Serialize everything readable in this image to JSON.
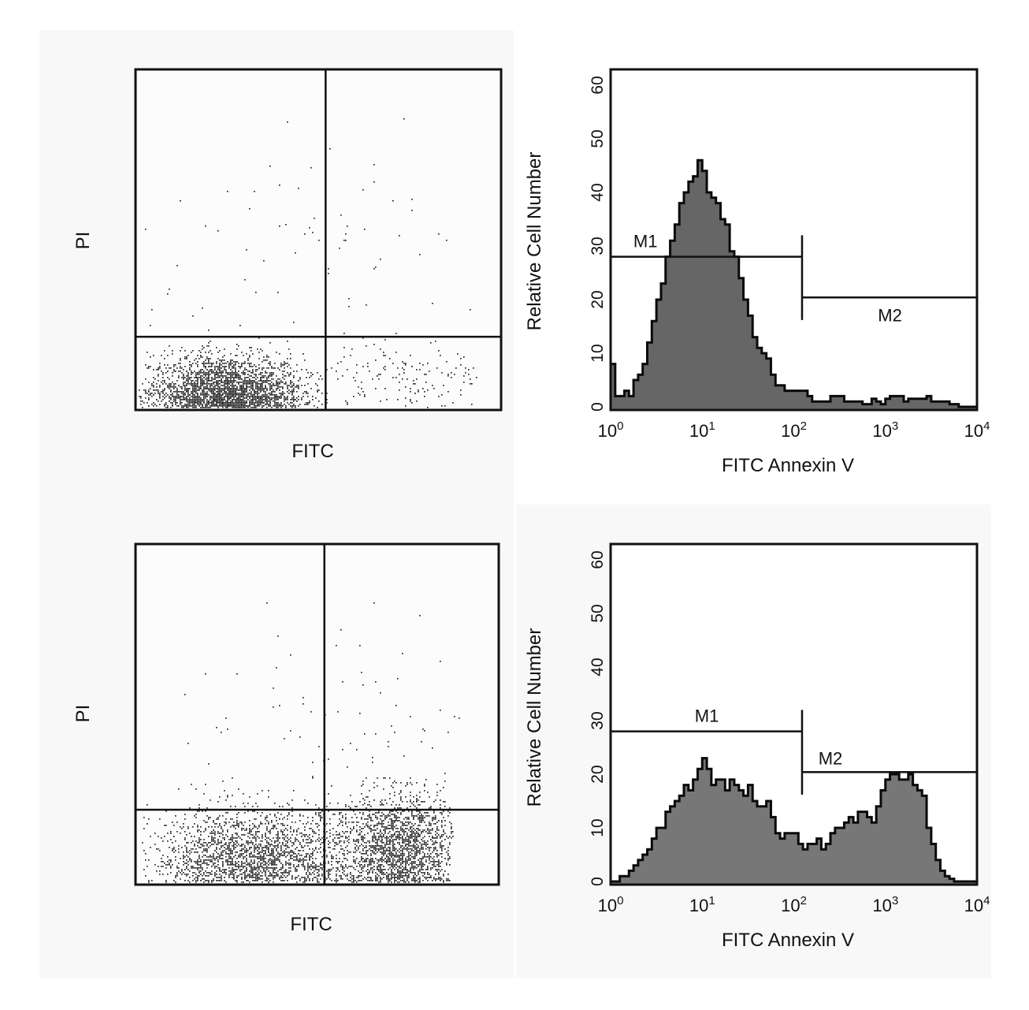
{
  "chart_data": [
    {
      "type": "scatter",
      "panel": "top-left",
      "xlabel": "FITC",
      "ylabel": "PI",
      "x_scale": "log",
      "xlim_decades": [
        0,
        4
      ],
      "y_scale": "log",
      "ylim_decades": [
        0,
        4
      ],
      "quadrant_x_decade": 2.08,
      "quadrant_y_decade": 0.86,
      "clusters": [
        {
          "n": 2600,
          "cx": 0.95,
          "sx": 0.42,
          "cy": 0.18,
          "sy": 0.22,
          "xmin": 0.0,
          "xmax": 2.08
        },
        {
          "n": 160,
          "cx": 2.9,
          "sx": 0.45,
          "cy": 0.35,
          "sy": 0.25,
          "xmin": 2.08,
          "xmax": 3.8
        },
        {
          "n": 70,
          "cx": 2.0,
          "sx": 1.1,
          "cy": 1.9,
          "sy": 0.55,
          "xmin": 0.0,
          "xmax": 3.9
        }
      ]
    },
    {
      "type": "histogram",
      "panel": "top-right",
      "xlabel": "FITC Annexin V",
      "ylabel": "Relative Cell Number",
      "x_scale": "log",
      "xlim": [
        1,
        10000
      ],
      "x_ticks": [
        {
          "base": "10",
          "exp": "0"
        },
        {
          "base": "10",
          "exp": "1"
        },
        {
          "base": "10",
          "exp": "2"
        },
        {
          "base": "10",
          "exp": "3"
        },
        {
          "base": "10",
          "exp": "4"
        }
      ],
      "ylim": [
        0,
        63
      ],
      "y_ticks": [
        "0",
        "10",
        "20",
        "30",
        "40",
        "50",
        "60"
      ],
      "bin_step_decades": 0.05,
      "values": [
        8,
        2,
        2,
        3,
        2,
        5,
        6,
        8,
        12,
        16,
        20,
        23,
        28,
        31,
        34,
        38,
        40,
        42,
        43,
        46,
        44,
        40,
        39,
        38,
        35,
        34,
        29,
        28,
        24,
        20,
        17,
        13,
        11,
        10,
        9,
        6,
        4,
        4,
        3,
        3,
        3,
        3,
        3,
        2,
        1,
        1,
        1,
        1,
        2,
        2,
        2,
        1,
        1,
        1,
        1,
        0.5,
        0.5,
        1.5,
        1,
        0.5,
        1.5,
        2,
        2,
        2,
        1,
        1.5,
        1.5,
        1.5,
        1.5,
        2,
        1,
        1,
        1,
        1,
        0.5,
        0.5,
        0,
        0,
        0,
        0,
        0
      ],
      "fill_color": "#666666",
      "gates": [
        {
          "label": "M1",
          "from_decade": 0,
          "to_decade": 2.09,
          "level": 28
        },
        {
          "label": "M2",
          "from_decade": 2.09,
          "to_decade": 4,
          "level": 20.4
        }
      ]
    },
    {
      "type": "scatter",
      "panel": "bottom-left",
      "xlabel": "FITC",
      "ylabel": "PI",
      "x_scale": "log",
      "xlim_decades": [
        0,
        4
      ],
      "y_scale": "log",
      "ylim_decades": [
        0,
        4
      ],
      "quadrant_x_decade": 2.08,
      "quadrant_y_decade": 0.88,
      "clusters": [
        {
          "n": 2000,
          "cx": 1.25,
          "sx": 0.55,
          "cy": 0.3,
          "sy": 0.28,
          "xmin": 0.02,
          "xmax": 2.3
        },
        {
          "n": 2000,
          "cx": 2.85,
          "sx": 0.35,
          "cy": 0.4,
          "sy": 0.32,
          "xmin": 1.9,
          "xmax": 3.45
        },
        {
          "n": 80,
          "cx": 2.2,
          "sx": 0.9,
          "cy": 2.0,
          "sy": 0.6,
          "xmin": 0.5,
          "xmax": 3.7
        }
      ]
    },
    {
      "type": "histogram",
      "panel": "bottom-right",
      "xlabel": "FITC Annexin V",
      "ylabel": "Relative Cell Number",
      "x_scale": "log",
      "xlim": [
        1,
        10000
      ],
      "x_ticks": [
        {
          "base": "10",
          "exp": "0"
        },
        {
          "base": "10",
          "exp": "1"
        },
        {
          "base": "10",
          "exp": "2"
        },
        {
          "base": "10",
          "exp": "3"
        },
        {
          "base": "10",
          "exp": "4"
        }
      ],
      "ylim": [
        0,
        63
      ],
      "y_ticks": [
        "0",
        "10",
        "20",
        "30",
        "40",
        "50",
        "60"
      ],
      "bin_step_decades": 0.05,
      "values": [
        0,
        0,
        1,
        1,
        2,
        3,
        4,
        5,
        6,
        8,
        10,
        10,
        13,
        14,
        15,
        16,
        18,
        17,
        19,
        21,
        23,
        21,
        18,
        19,
        19,
        17,
        19,
        18,
        17,
        16,
        18,
        15,
        14,
        14,
        15,
        12,
        9,
        8,
        9,
        9,
        9,
        7,
        6,
        7,
        7,
        8,
        6,
        7,
        9,
        10,
        10,
        11,
        12,
        11,
        13,
        13,
        12,
        11,
        14,
        17,
        19,
        20,
        20,
        19,
        19,
        20,
        18,
        17,
        16,
        10,
        7,
        4,
        2,
        1,
        0.5,
        0,
        0,
        0,
        0,
        0,
        0
      ],
      "fill_color": "#777777",
      "gates": [
        {
          "label": "M1",
          "from_decade": 0,
          "to_decade": 2.09,
          "level": 28
        },
        {
          "label": "M2",
          "from_decade": 2.09,
          "to_decade": 4,
          "level": 20.4
        }
      ]
    }
  ]
}
